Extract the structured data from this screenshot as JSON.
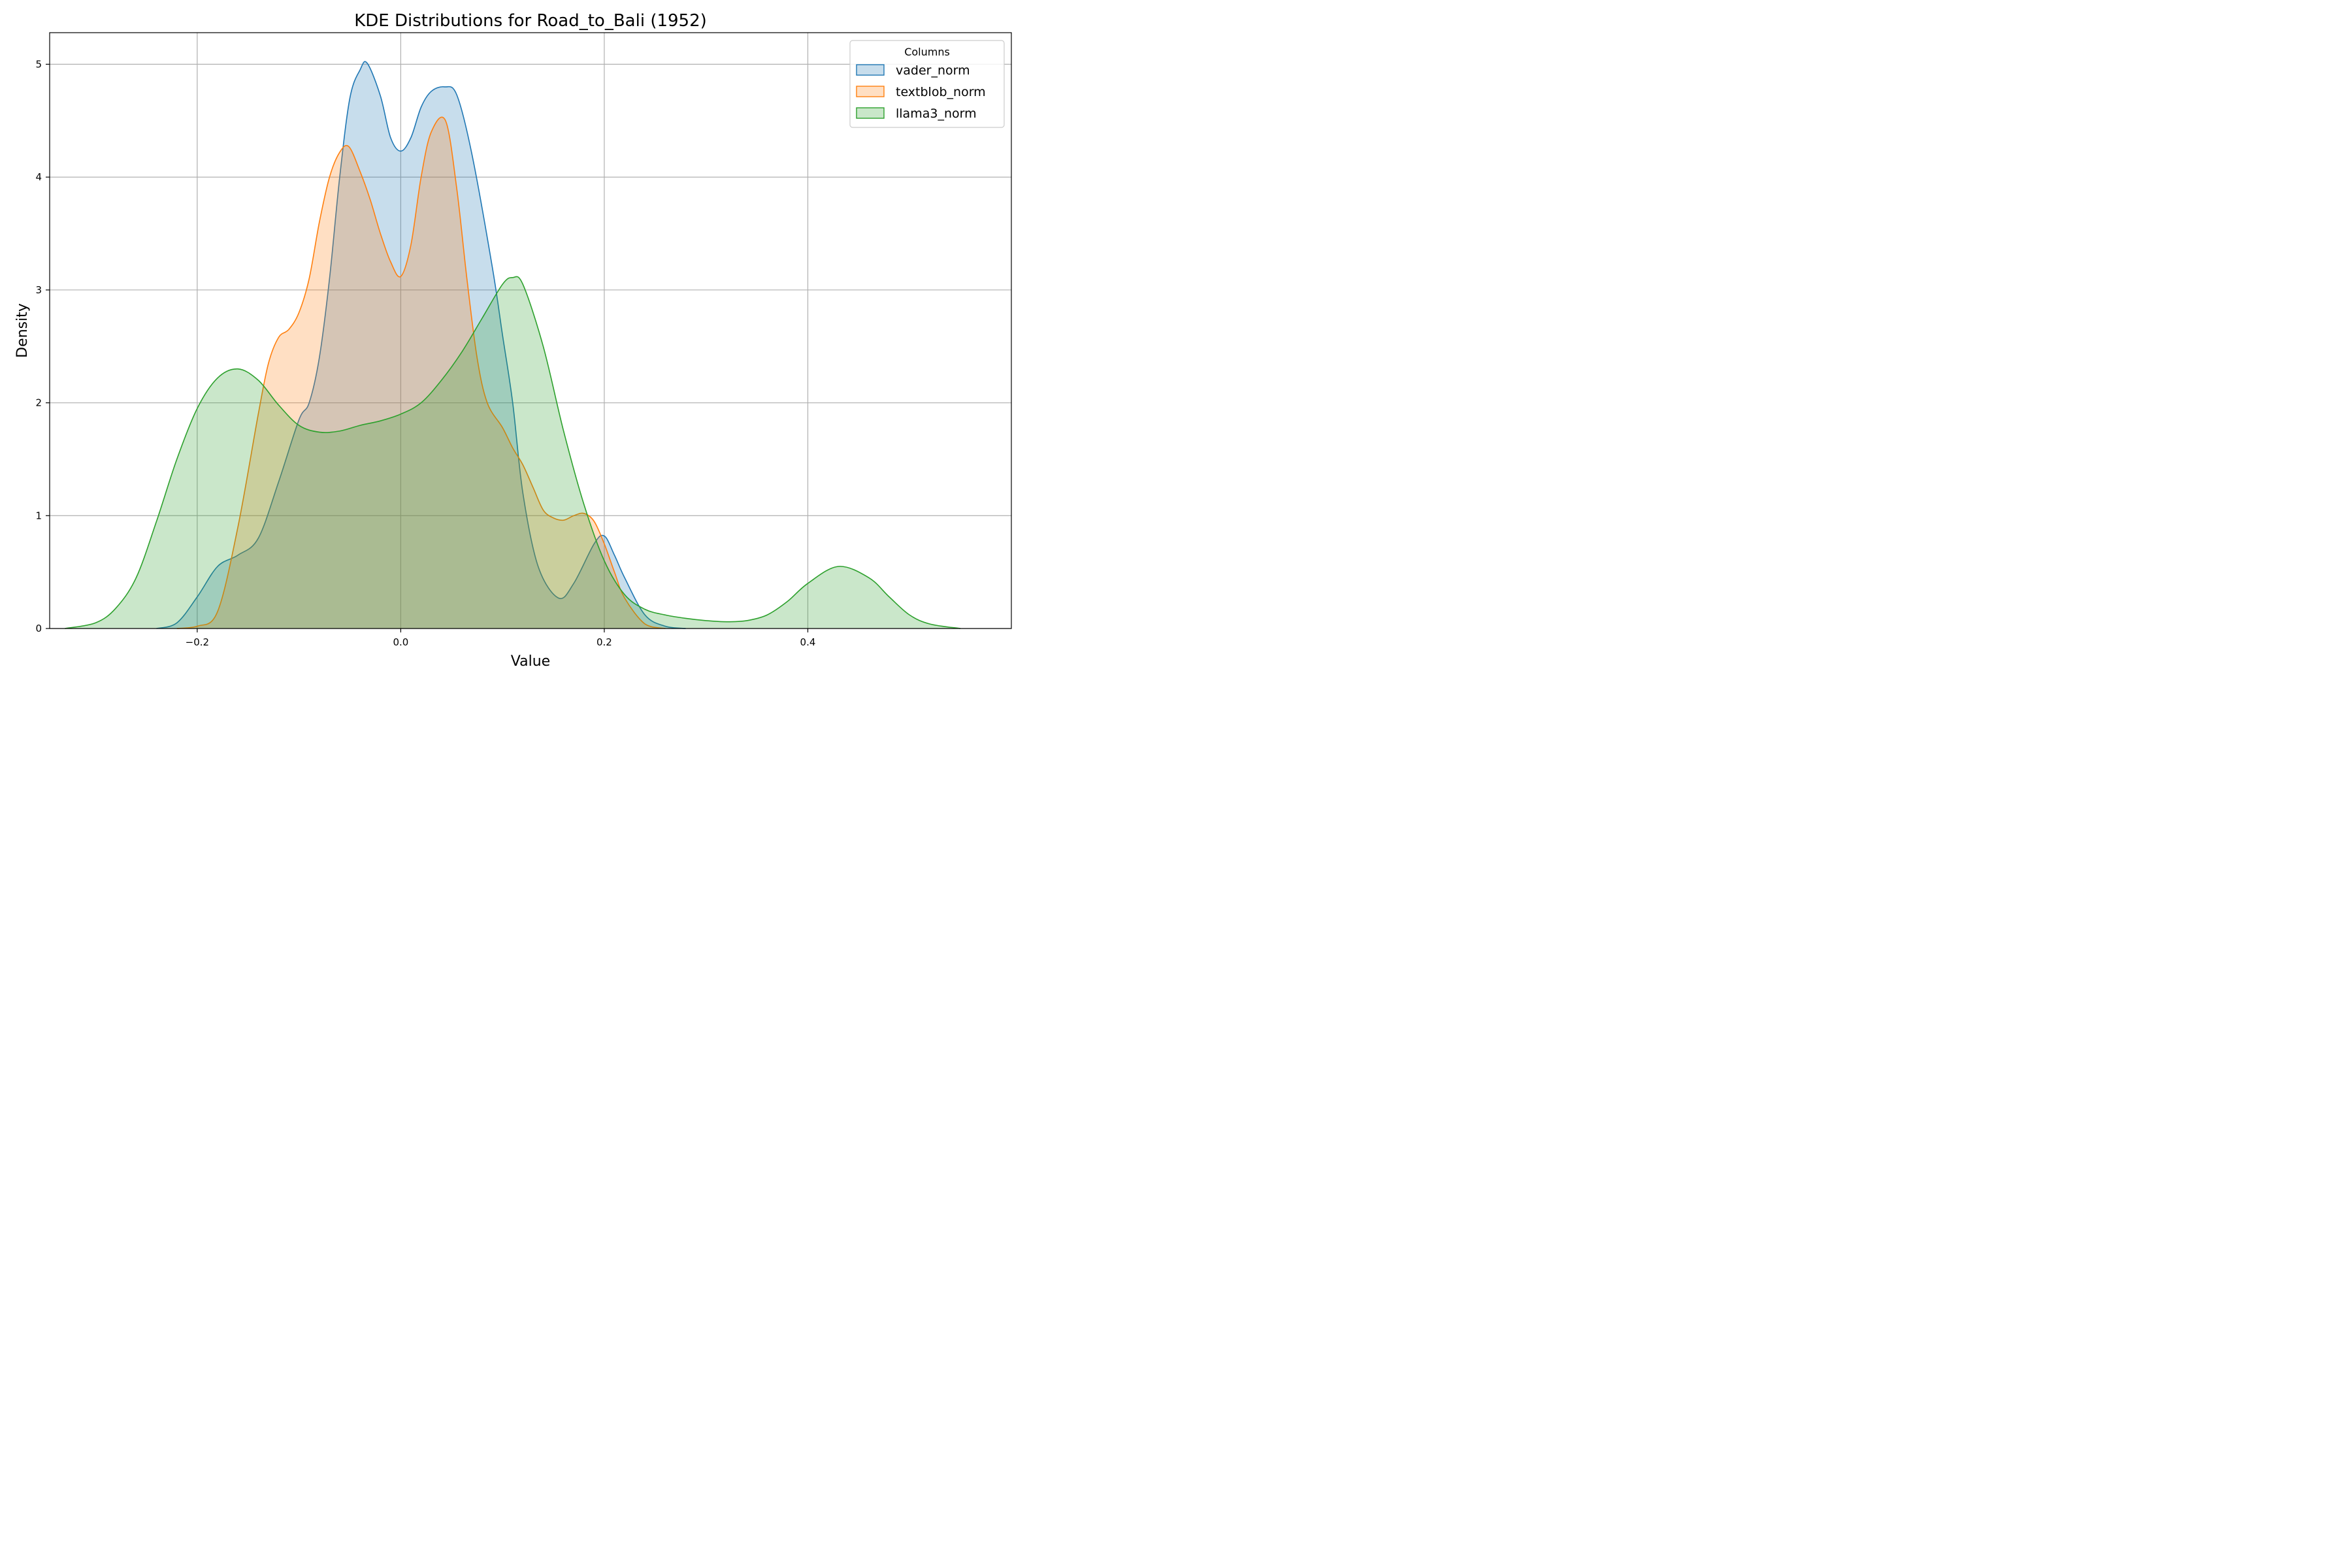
{
  "chart_data": {
    "type": "area",
    "title": "KDE Distributions for Road_to_Bali (1952)",
    "xlabel": "Value",
    "ylabel": "Density",
    "xlim": [
      -0.345,
      0.6
    ],
    "ylim": [
      0,
      5.28
    ],
    "xticks": [
      -0.2,
      0.0,
      0.2,
      0.4
    ],
    "xtick_labels": [
      "−0.2",
      "0.0",
      "0.2",
      "0.4"
    ],
    "yticks": [
      0,
      1,
      2,
      3,
      4,
      5
    ],
    "ytick_labels": [
      "0",
      "1",
      "2",
      "3",
      "4",
      "5"
    ],
    "grid": true,
    "legend": {
      "title": "Columns",
      "placement": "top-right"
    },
    "series": [
      {
        "name": "vader_norm",
        "color": "#1f77b4",
        "x": [
          -0.24,
          -0.22,
          -0.2,
          -0.18,
          -0.16,
          -0.14,
          -0.12,
          -0.1,
          -0.09,
          -0.08,
          -0.07,
          -0.06,
          -0.05,
          -0.04,
          -0.033,
          -0.02,
          -0.01,
          0.0,
          0.01,
          0.02,
          0.03,
          0.043,
          0.055,
          0.07,
          0.09,
          0.1,
          0.11,
          0.12,
          0.135,
          0.155,
          0.17,
          0.19,
          0.2,
          0.21,
          0.22,
          0.24,
          0.26,
          0.28
        ],
        "y": [
          0.0,
          0.05,
          0.28,
          0.55,
          0.65,
          0.8,
          1.3,
          1.85,
          2.0,
          2.4,
          3.1,
          4.0,
          4.7,
          4.95,
          5.01,
          4.72,
          4.35,
          4.23,
          4.35,
          4.62,
          4.76,
          4.8,
          4.73,
          4.2,
          3.2,
          2.6,
          2.0,
          1.2,
          0.55,
          0.27,
          0.4,
          0.75,
          0.82,
          0.65,
          0.45,
          0.12,
          0.02,
          0.0
        ]
      },
      {
        "name": "textblob_norm",
        "color": "#ff7f0e",
        "x": [
          -0.22,
          -0.2,
          -0.18,
          -0.16,
          -0.14,
          -0.13,
          -0.12,
          -0.11,
          -0.1,
          -0.09,
          -0.08,
          -0.07,
          -0.06,
          -0.051,
          -0.04,
          -0.03,
          -0.02,
          -0.01,
          0.0,
          0.01,
          0.02,
          0.03,
          0.044,
          0.055,
          0.065,
          0.075,
          0.085,
          0.1,
          0.11,
          0.12,
          0.13,
          0.14,
          0.15,
          0.16,
          0.17,
          0.18,
          0.19,
          0.2,
          0.21,
          0.22,
          0.24,
          0.26
        ],
        "y": [
          0.0,
          0.02,
          0.15,
          0.9,
          1.9,
          2.35,
          2.58,
          2.65,
          2.8,
          3.1,
          3.6,
          4.0,
          4.22,
          4.27,
          4.05,
          3.8,
          3.5,
          3.25,
          3.12,
          3.4,
          4.0,
          4.4,
          4.5,
          3.9,
          3.1,
          2.4,
          2.0,
          1.78,
          1.6,
          1.45,
          1.25,
          1.05,
          0.98,
          0.96,
          1.0,
          1.02,
          0.95,
          0.75,
          0.5,
          0.27,
          0.04,
          0.0
        ]
      },
      {
        "name": "llama3_norm",
        "color": "#2ca02c",
        "x": [
          -0.33,
          -0.3,
          -0.28,
          -0.26,
          -0.24,
          -0.22,
          -0.2,
          -0.18,
          -0.16,
          -0.14,
          -0.12,
          -0.1,
          -0.08,
          -0.06,
          -0.04,
          -0.02,
          0.0,
          0.02,
          0.04,
          0.06,
          0.08,
          0.1,
          0.11,
          0.12,
          0.14,
          0.16,
          0.18,
          0.2,
          0.22,
          0.24,
          0.26,
          0.28,
          0.3,
          0.32,
          0.34,
          0.36,
          0.38,
          0.4,
          0.43,
          0.46,
          0.48,
          0.5,
          0.52,
          0.55
        ],
        "y": [
          0.0,
          0.05,
          0.18,
          0.45,
          0.95,
          1.5,
          1.95,
          2.22,
          2.3,
          2.2,
          1.98,
          1.8,
          1.74,
          1.75,
          1.8,
          1.84,
          1.9,
          2.0,
          2.2,
          2.45,
          2.75,
          3.05,
          3.11,
          3.05,
          2.5,
          1.75,
          1.1,
          0.6,
          0.3,
          0.17,
          0.12,
          0.09,
          0.07,
          0.06,
          0.07,
          0.12,
          0.24,
          0.4,
          0.55,
          0.45,
          0.28,
          0.12,
          0.04,
          0.0
        ]
      }
    ]
  }
}
